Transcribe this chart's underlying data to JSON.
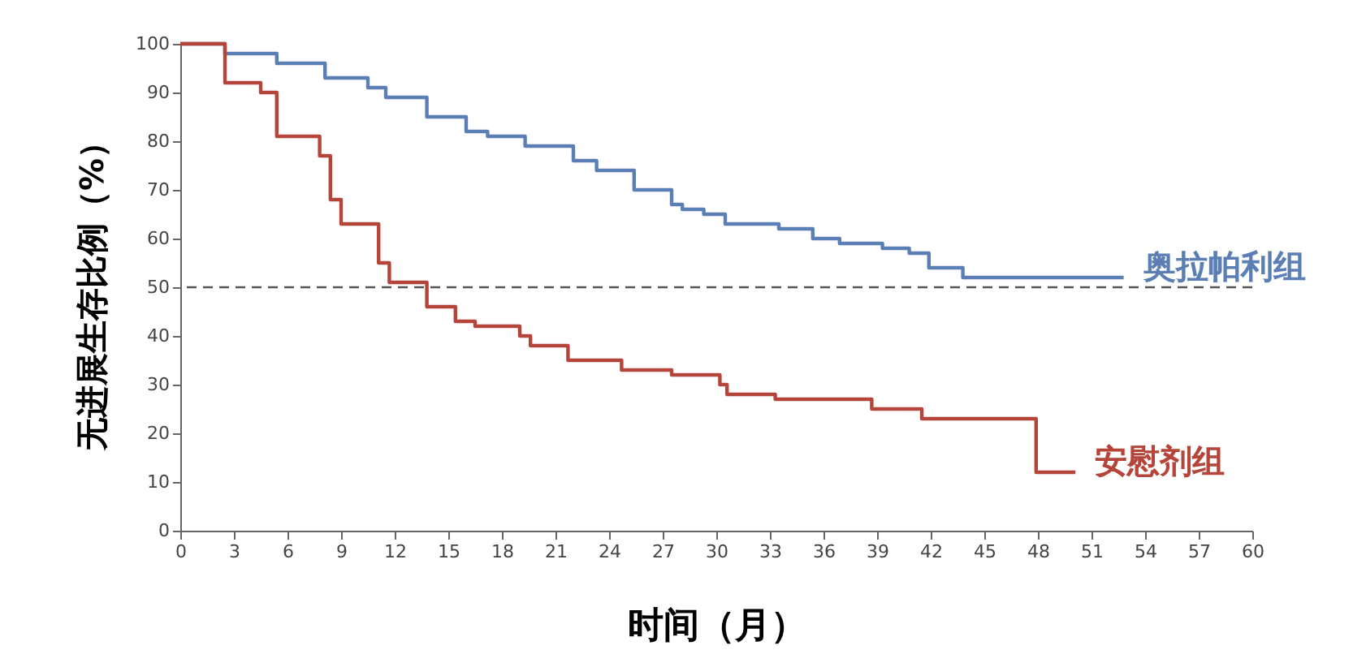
{
  "chart_data": {
    "type": "step",
    "xlabel": "时间（月）",
    "ylabel": "无进展生存比例（%）",
    "xlim": [
      0,
      60
    ],
    "xticks": [
      0,
      3,
      6,
      9,
      12,
      15,
      18,
      21,
      24,
      27,
      30,
      33,
      36,
      39,
      42,
      45,
      48,
      51,
      54,
      57,
      60
    ],
    "ylim": [
      0,
      100
    ],
    "yticks": [
      0,
      10,
      20,
      30,
      40,
      50,
      60,
      70,
      80,
      90,
      100
    ],
    "grid": false,
    "marker": "none",
    "line_style": "solid",
    "ref_lines": [
      {
        "axis": "y",
        "value": 50,
        "label": null,
        "color": "#555555",
        "line_style": "dashed"
      }
    ],
    "series": [
      {
        "name": "奥拉帕利组",
        "color": "#5b7fb5",
        "x": [
          0,
          2.5,
          5.4,
          8.1,
          10.5,
          11.5,
          13.8,
          16,
          17.2,
          19.3,
          22,
          23.3,
          25.4,
          27.5,
          28.1,
          29.3,
          30.5,
          33.5,
          35.4,
          36.9,
          39.3,
          40.8,
          41.9,
          43.8,
          52.8
        ],
        "values": [
          100,
          98,
          96,
          93,
          91,
          89,
          85,
          82,
          81,
          79,
          76,
          74,
          70,
          67,
          66,
          65,
          63,
          62,
          60,
          59,
          58,
          57,
          54,
          52,
          52
        ]
      },
      {
        "name": "安慰剂组",
        "color": "#b5443a",
        "x": [
          0,
          2.5,
          4.5,
          5.4,
          7.8,
          8.4,
          9,
          11.1,
          11.7,
          13.8,
          15.4,
          16.5,
          19,
          19.6,
          21.7,
          24.7,
          27.5,
          30.2,
          30.6,
          33.3,
          38.7,
          41.5,
          47.9,
          50.1
        ],
        "values": [
          100,
          92,
          90,
          81,
          77,
          68,
          63,
          55,
          51,
          46,
          43,
          42,
          40,
          38,
          35,
          33,
          32,
          30,
          28,
          27,
          25,
          23,
          12,
          12
        ]
      }
    ]
  }
}
